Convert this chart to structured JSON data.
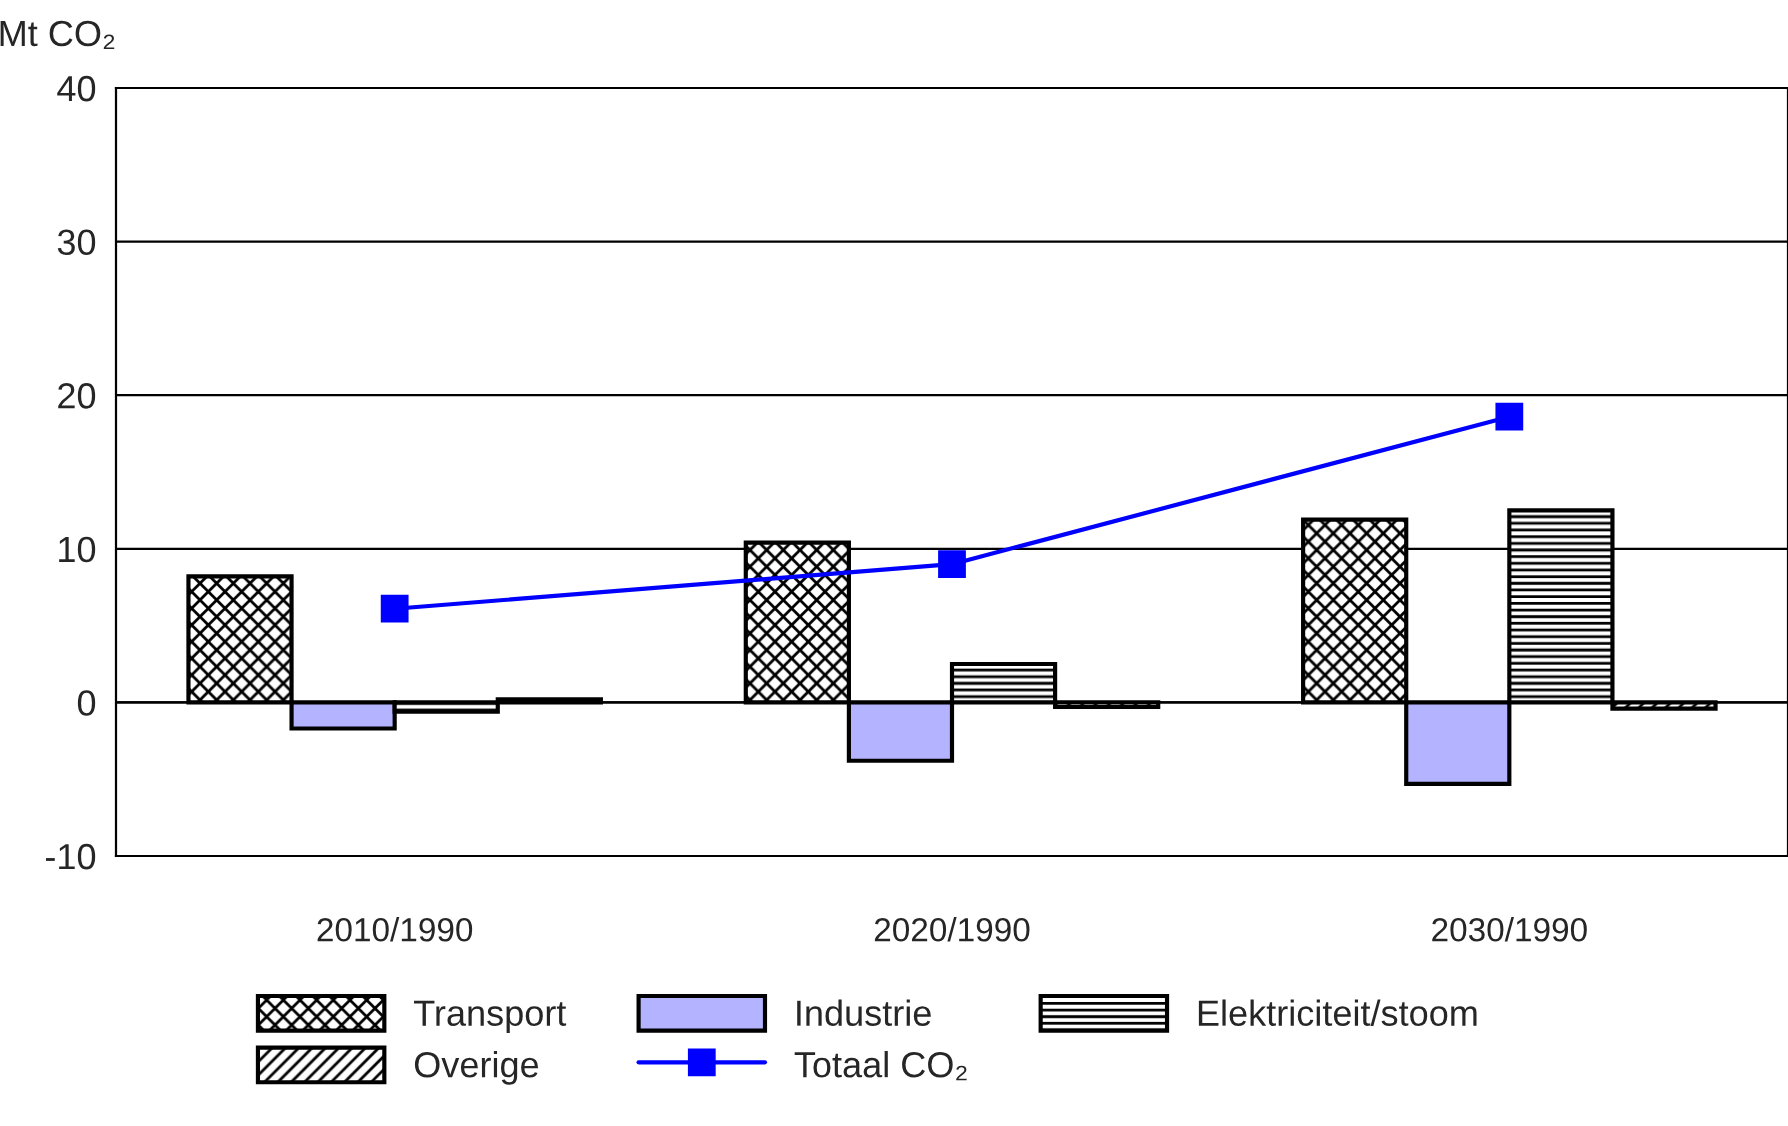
{
  "chart_data": {
    "type": "bar",
    "ylabel": "Mt CO₂",
    "categories": [
      "2010/1990",
      "2020/1990",
      "2030/1990"
    ],
    "series": [
      {
        "name": "Transport",
        "color": "#000000",
        "values": [
          8.2,
          10.4,
          11.9
        ]
      },
      {
        "name": "Industrie",
        "color": "#b3b3ff",
        "values": [
          -1.7,
          -3.8,
          -5.3
        ]
      },
      {
        "name": "Elektriciteit/stoom",
        "color": "#000000",
        "values": [
          -0.6,
          2.5,
          12.5
        ]
      },
      {
        "name": "Overige",
        "color": "#000000",
        "values": [
          0.2,
          -0.3,
          -0.4
        ]
      },
      {
        "name": "Totaal CO₂",
        "type": "line",
        "color": "#0000ff",
        "marker": "square",
        "values": [
          6.1,
          9.0,
          18.6
        ]
      }
    ],
    "ylim": [
      -10,
      40
    ],
    "yticks": [
      -10,
      0,
      10,
      20,
      30,
      40
    ],
    "grid": "y",
    "legend": "bottom"
  }
}
